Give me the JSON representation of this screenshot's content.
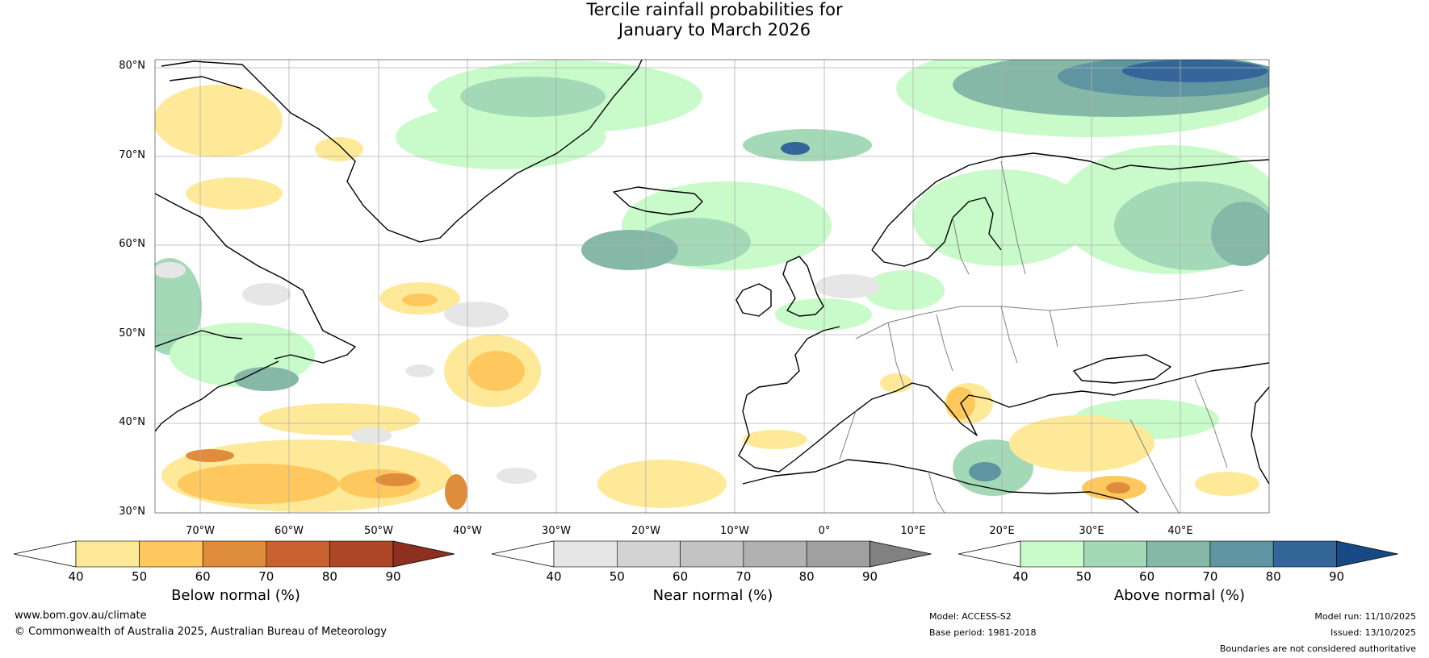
{
  "title": {
    "line1": "Tercile rainfall probabilities for",
    "line2": "January to March 2026"
  },
  "map": {
    "lat_labels": [
      "80°N",
      "70°N",
      "60°N",
      "50°N",
      "40°N",
      "30°N"
    ],
    "lon_labels": [
      "70°W",
      "60°W",
      "50°W",
      "40°W",
      "30°W",
      "20°W",
      "10°W",
      "0°",
      "10°E",
      "20°E",
      "30°E",
      "40°E"
    ],
    "lat_range": [
      30,
      81
    ],
    "lon_range": [
      -80,
      45
    ],
    "colors": {
      "land_outline": "#000000",
      "borders": "#808080",
      "grid": "#b0b0b0"
    }
  },
  "legends": [
    {
      "title": "Below normal (%)",
      "ticks": [
        "40",
        "50",
        "60",
        "70",
        "80",
        "90"
      ],
      "colors": [
        "#ffffff",
        "#fee999",
        "#fec85f",
        "#df8c3d",
        "#c96131",
        "#ad4627",
        "#8e2f20"
      ]
    },
    {
      "title": "Near normal (%)",
      "ticks": [
        "40",
        "50",
        "60",
        "70",
        "80",
        "90"
      ],
      "colors": [
        "#ffffff",
        "#e6e6e6",
        "#d3d3d3",
        "#c3c3c3",
        "#b1b1b1",
        "#a0a0a0",
        "#818181"
      ]
    },
    {
      "title": "Above normal (%)",
      "ticks": [
        "40",
        "50",
        "60",
        "70",
        "80",
        "90"
      ],
      "colors": [
        "#ffffff",
        "#c8fbc9",
        "#a4d9b7",
        "#86b8a8",
        "#5e95a1",
        "#34669a",
        "#174a84"
      ]
    }
  ],
  "footer": {
    "website": "www.bom.gov.au/climate",
    "copyright": "© Commonwealth of Australia 2025, Australian Bureau of Meteorology",
    "model": "Model: ACCESS-S2",
    "base_period": "Base period: 1981-2018",
    "model_run": "Model run: 11/10/2025",
    "issued": "Issued: 13/10/2025",
    "disclaimer": "Boundaries are not considered authoritative"
  }
}
